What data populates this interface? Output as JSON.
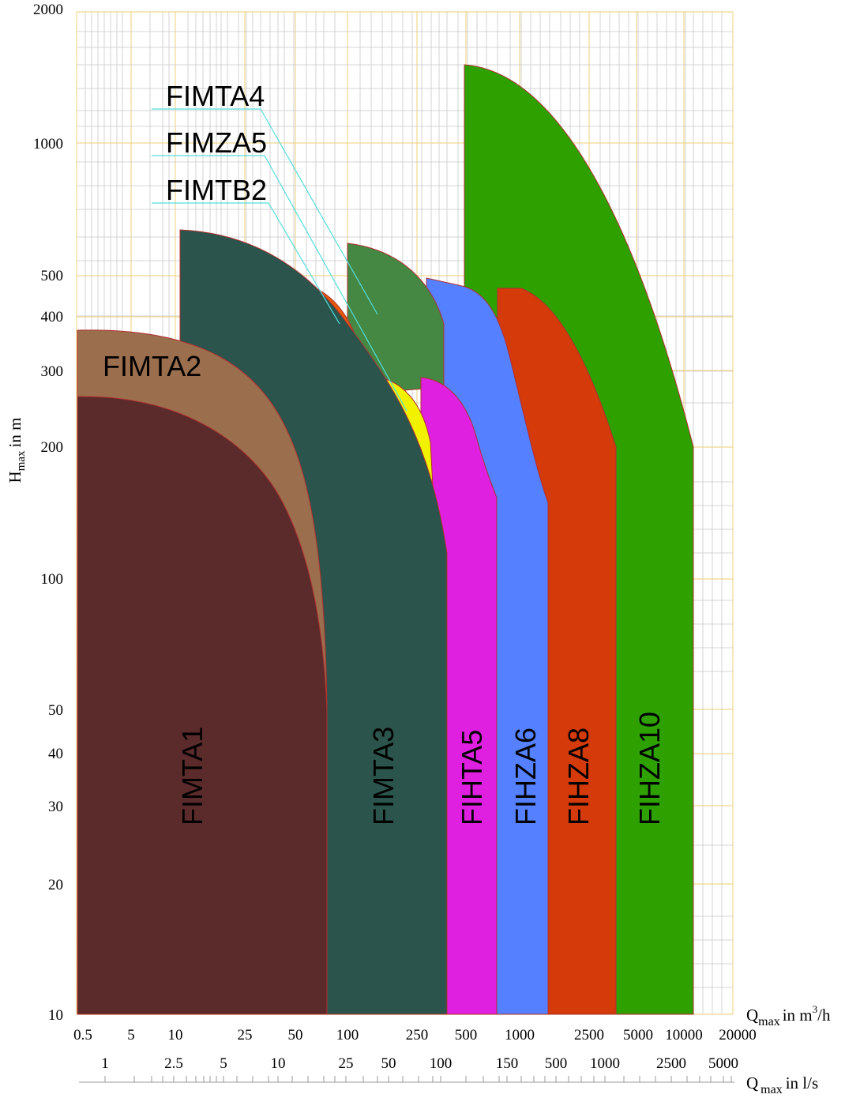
{
  "chart_data": {
    "type": "area",
    "title": "",
    "ylabel": {
      "main": "H",
      "sub": "max",
      "rest": "in m"
    },
    "xlabel_m3h": {
      "main": "Q",
      "sub": "max",
      "rest": "in m",
      "sup": "3",
      "tail": "/h"
    },
    "xlabel_ls": {
      "main": "Q",
      "sub": "max",
      "rest": "in l/s"
    },
    "y_scale": "log",
    "ylim": [
      10,
      2000
    ],
    "y_ticks": [
      "2000",
      "1000",
      "500",
      "400",
      "300",
      "200",
      "100",
      "50",
      "40",
      "30",
      "20",
      "10"
    ],
    "x_scale": "log",
    "x_ticks_m3h": [
      "0.5",
      "5",
      "10",
      "25",
      "50",
      "100",
      "250",
      "500",
      "1000",
      "2500",
      "5000",
      "10000",
      "20000"
    ],
    "x_ticks_ls": [
      "1",
      "2.5",
      "5",
      "10",
      "25",
      "50",
      "100",
      "150",
      "500",
      "1000",
      "2500",
      "5000"
    ],
    "grid": true,
    "series": [
      {
        "name": "FIMTA2",
        "color": "#9B6E4D",
        "hmax_m": 375,
        "qmax_m3h": 72
      },
      {
        "name": "FIMTA1",
        "color": "#5A2B2A",
        "hmax_m": 265,
        "qmax_m3h": 72
      },
      {
        "name": "FIMTB2",
        "color": "#E85A0A",
        "hmax_m": 475,
        "qmax_m3h": 130
      },
      {
        "name": "FIMTA3",
        "color": "#2B554C",
        "hmax_m": 640,
        "qmax_m3h": 380
      },
      {
        "name": "FIMZA5",
        "color": "#F2F200",
        "hmax_m": 290,
        "qmax_m3h": 260
      },
      {
        "name": "FIMTA4",
        "color": "#448844",
        "hmax_m": 590,
        "qmax_m3h": 250
      },
      {
        "name": "FIHZA6",
        "color": "#5580FF",
        "hmax_m": 490,
        "qmax_m3h": 1400
      },
      {
        "name": "FIHTA5",
        "color": "#E020E0",
        "hmax_m": 290,
        "qmax_m3h": 740
      },
      {
        "name": "FIHZA8",
        "color": "#D43A0A",
        "hmax_m": 460,
        "qmax_m3h": 3500
      },
      {
        "name": "FIHZA10",
        "color": "#2EA000",
        "hmax_m": 1500,
        "qmax_m3h": 9000
      }
    ]
  }
}
